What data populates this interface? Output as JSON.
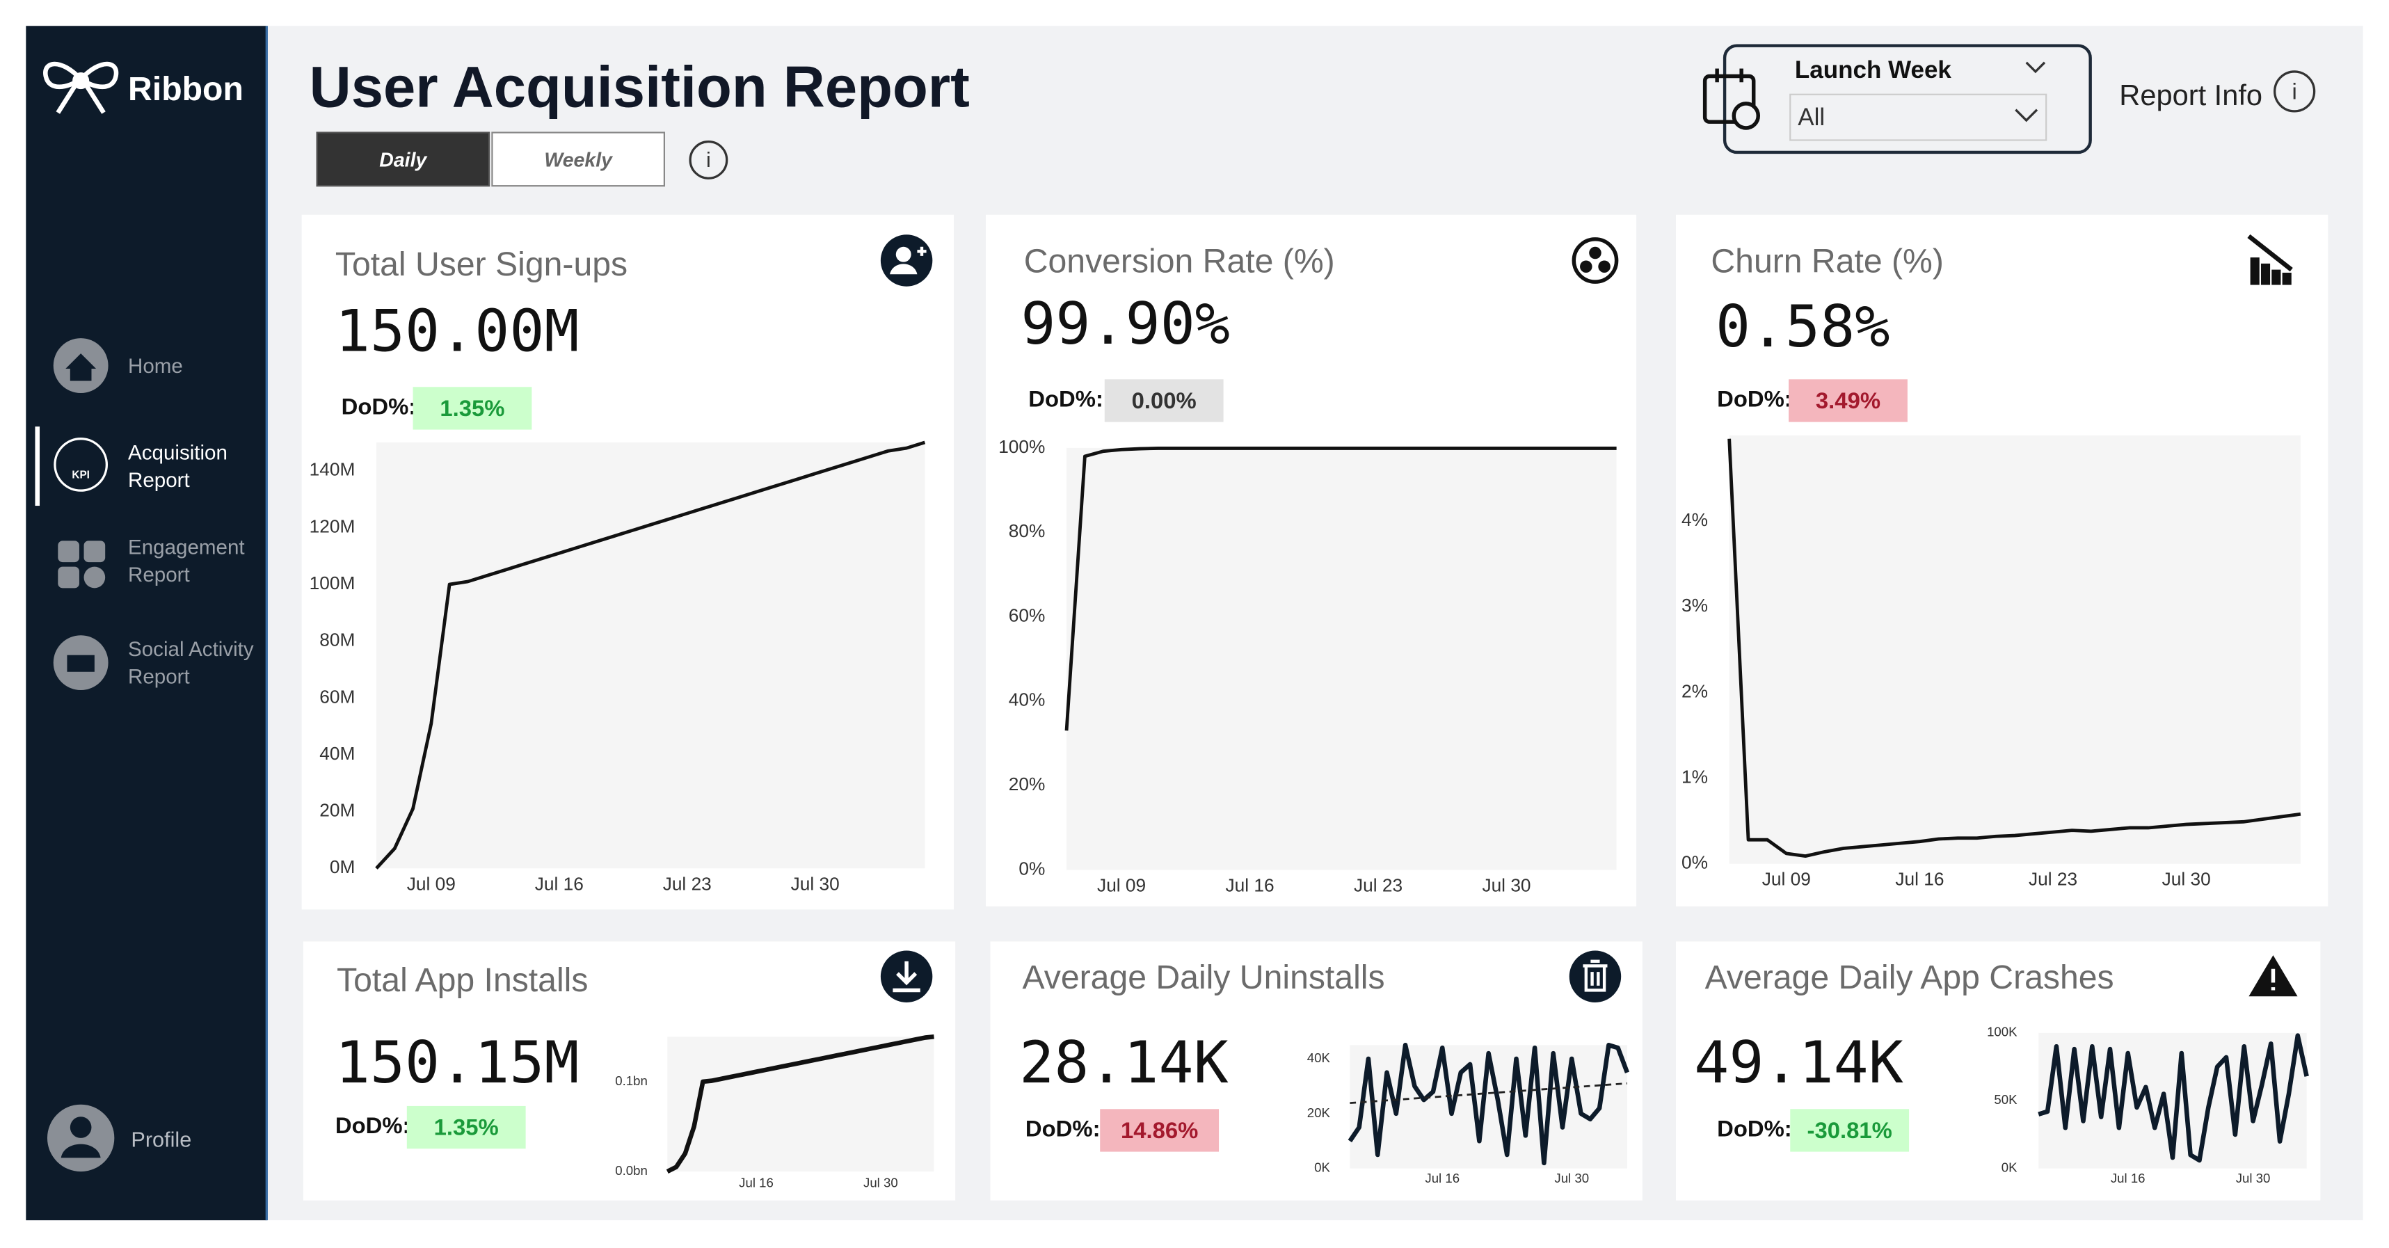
{
  "brand": "Ribbon",
  "sidebar": {
    "nav": [
      {
        "lines": [
          "Home"
        ]
      },
      {
        "lines": [
          "Acquisition",
          "Report"
        ]
      },
      {
        "lines": [
          "Engagement",
          "Report"
        ]
      },
      {
        "lines": [
          "Social Activity",
          "Report"
        ]
      }
    ],
    "profile": "Profile"
  },
  "header": {
    "title": "User Acquisition Report",
    "toggle": [
      "Daily",
      "Weekly"
    ],
    "filter_label": "Launch Week",
    "filter_value": "All",
    "report_info": "Report Info"
  },
  "chart_data": [
    {
      "type": "line",
      "title": "Total User Sign-ups",
      "kpi": "150.00M",
      "dod_label": "DoD%:",
      "dod": "1.35%",
      "dod_bg": "#ccffcc",
      "dod_fg": "#1a9a3a",
      "color": "#111111",
      "categories": [
        null,
        null,
        null,
        "Jul 09",
        null,
        null,
        null,
        null,
        null,
        null,
        "Jul 16",
        null,
        null,
        null,
        null,
        null,
        null,
        "Jul 23",
        null,
        null,
        null,
        null,
        null,
        null,
        "Jul 30",
        null,
        null,
        null,
        null,
        null,
        null
      ],
      "values": [
        0,
        7,
        21,
        51,
        100,
        101,
        103,
        105,
        107,
        109,
        111,
        113,
        115,
        117,
        119,
        121,
        123,
        125,
        127,
        129,
        131,
        133,
        135,
        137,
        139,
        141,
        143,
        145,
        147,
        148,
        150
      ],
      "ylim": [
        0,
        150
      ],
      "yticks": [
        {
          "value": 0,
          "label": "0M"
        },
        {
          "value": 20,
          "label": "20M"
        },
        {
          "value": 40,
          "label": "40M"
        },
        {
          "value": 60,
          "label": "60M"
        },
        {
          "value": 80,
          "label": "80M"
        },
        {
          "value": 100,
          "label": "100M"
        },
        {
          "value": 120,
          "label": "120M"
        },
        {
          "value": 140,
          "label": "140M"
        }
      ]
    },
    {
      "type": "line",
      "title": "Conversion Rate (%)",
      "kpi": "99.90%",
      "dod_label": "DoD%:",
      "dod": "0.00%",
      "dod_bg": "#e3e3e3",
      "dod_fg": "#333333",
      "color": "#111111",
      "categories": [
        null,
        null,
        null,
        "Jul 09",
        null,
        null,
        null,
        null,
        null,
        null,
        "Jul 16",
        null,
        null,
        null,
        null,
        null,
        null,
        "Jul 23",
        null,
        null,
        null,
        null,
        null,
        null,
        "Jul 30",
        null,
        null,
        null,
        null,
        null,
        null
      ],
      "values": [
        33,
        98,
        99.2,
        99.6,
        99.8,
        99.9,
        99.9,
        99.9,
        99.9,
        99.9,
        99.9,
        99.9,
        99.9,
        99.9,
        99.9,
        99.9,
        99.9,
        99.9,
        99.9,
        99.9,
        99.9,
        99.9,
        99.9,
        99.9,
        99.9,
        99.9,
        99.9,
        99.9,
        99.9,
        99.9,
        99.9
      ],
      "ylim": [
        0,
        100
      ],
      "yticks": [
        {
          "value": 0,
          "label": "0%"
        },
        {
          "value": 20,
          "label": "20%"
        },
        {
          "value": 40,
          "label": "40%"
        },
        {
          "value": 60,
          "label": "60%"
        },
        {
          "value": 80,
          "label": "80%"
        },
        {
          "value": 100,
          "label": "100%"
        }
      ]
    },
    {
      "type": "line",
      "title": "Churn Rate (%)",
      "kpi": "0.58%",
      "dod_label": "DoD%:",
      "dod": "3.49%",
      "dod_bg": "#f4b6bd",
      "dod_fg": "#a3192d",
      "color": "#111111",
      "categories": [
        null,
        null,
        null,
        "Jul 09",
        null,
        null,
        null,
        null,
        null,
        null,
        "Jul 16",
        null,
        null,
        null,
        null,
        null,
        null,
        "Jul 23",
        null,
        null,
        null,
        null,
        null,
        null,
        "Jul 30",
        null,
        null,
        null,
        null,
        null,
        null
      ],
      "values": [
        4.96,
        0.28,
        0.28,
        0.12,
        0.09,
        0.14,
        0.18,
        0.2,
        0.22,
        0.24,
        0.26,
        0.29,
        0.3,
        0.3,
        0.32,
        0.33,
        0.35,
        0.37,
        0.39,
        0.38,
        0.4,
        0.42,
        0.42,
        0.44,
        0.46,
        0.47,
        0.48,
        0.49,
        0.52,
        0.55,
        0.58
      ],
      "ylim": [
        0,
        5
      ],
      "yticks": [
        {
          "value": 0,
          "label": "0%"
        },
        {
          "value": 1,
          "label": "1%"
        },
        {
          "value": 2,
          "label": "2%"
        },
        {
          "value": 3,
          "label": "3%"
        },
        {
          "value": 4,
          "label": "4%"
        }
      ]
    },
    {
      "type": "line",
      "title": "Total App Installs",
      "kpi": "150.15M",
      "dod_label": "DoD%:",
      "dod": "1.35%",
      "dod_bg": "#ccffcc",
      "dod_fg": "#1a9a3a",
      "color": "#111111",
      "categories": [
        null,
        null,
        null,
        null,
        null,
        null,
        null,
        null,
        null,
        null,
        "Jul 16",
        null,
        null,
        null,
        null,
        null,
        null,
        null,
        null,
        null,
        null,
        null,
        null,
        null,
        "Jul 30",
        null,
        null,
        null,
        null,
        null,
        null
      ],
      "values": [
        0,
        0.005,
        0.02,
        0.05,
        0.1,
        0.101,
        0.103,
        0.105,
        0.107,
        0.109,
        0.111,
        0.113,
        0.115,
        0.117,
        0.119,
        0.121,
        0.123,
        0.125,
        0.127,
        0.129,
        0.131,
        0.133,
        0.135,
        0.137,
        0.139,
        0.141,
        0.143,
        0.145,
        0.147,
        0.149,
        0.15
      ],
      "ylim": [
        0,
        0.15
      ],
      "yticks": [
        {
          "value": 0,
          "label": "0.0bn"
        },
        {
          "value": 0.1,
          "label": "0.1bn"
        }
      ]
    },
    {
      "type": "line",
      "title": "Average Daily Uninstalls",
      "kpi": "28.14K",
      "dod_label": "DoD%:",
      "dod": "14.86%",
      "dod_bg": "#f4b6bd",
      "dod_fg": "#a3192d",
      "color": "#0d1b2a",
      "trendline": true,
      "categories": [
        null,
        null,
        null,
        null,
        null,
        null,
        null,
        null,
        null,
        null,
        "Jul 16",
        null,
        null,
        null,
        null,
        null,
        null,
        null,
        null,
        null,
        null,
        null,
        null,
        null,
        "Jul 30",
        null,
        null,
        null,
        null,
        null,
        null
      ],
      "values": [
        10,
        15,
        40,
        5,
        35,
        20,
        45,
        30,
        25,
        28,
        44,
        20,
        35,
        38,
        10,
        42,
        25,
        5,
        40,
        12,
        44,
        2,
        42,
        15,
        40,
        20,
        18,
        22,
        45,
        44,
        35
      ],
      "ylim": [
        0,
        45
      ],
      "yticks": [
        {
          "value": 0,
          "label": "0K"
        },
        {
          "value": 20,
          "label": "20K"
        },
        {
          "value": 40,
          "label": "40K"
        }
      ]
    },
    {
      "type": "line",
      "title": "Average Daily App Crashes",
      "kpi": "49.14K",
      "dod_label": "DoD%:",
      "dod": "-30.81%",
      "dod_bg": "#ccffcc",
      "dod_fg": "#1a9a3a",
      "color": "#0d1b2a",
      "categories": [
        null,
        null,
        null,
        null,
        null,
        null,
        null,
        null,
        null,
        null,
        "Jul 16",
        null,
        null,
        null,
        null,
        null,
        null,
        null,
        null,
        null,
        null,
        null,
        null,
        null,
        "Jul 30",
        null,
        null,
        null,
        null,
        null,
        null
      ],
      "values": [
        40,
        42,
        90,
        30,
        88,
        35,
        90,
        38,
        88,
        30,
        85,
        45,
        60,
        30,
        55,
        8,
        85,
        10,
        6,
        45,
        75,
        82,
        25,
        90,
        35,
        62,
        92,
        20,
        55,
        98,
        68
      ],
      "ylim": [
        0,
        100
      ],
      "yticks": [
        {
          "value": 0,
          "label": "0K"
        },
        {
          "value": 50,
          "label": "50K"
        },
        {
          "value": 100,
          "label": "100K"
        }
      ]
    }
  ]
}
